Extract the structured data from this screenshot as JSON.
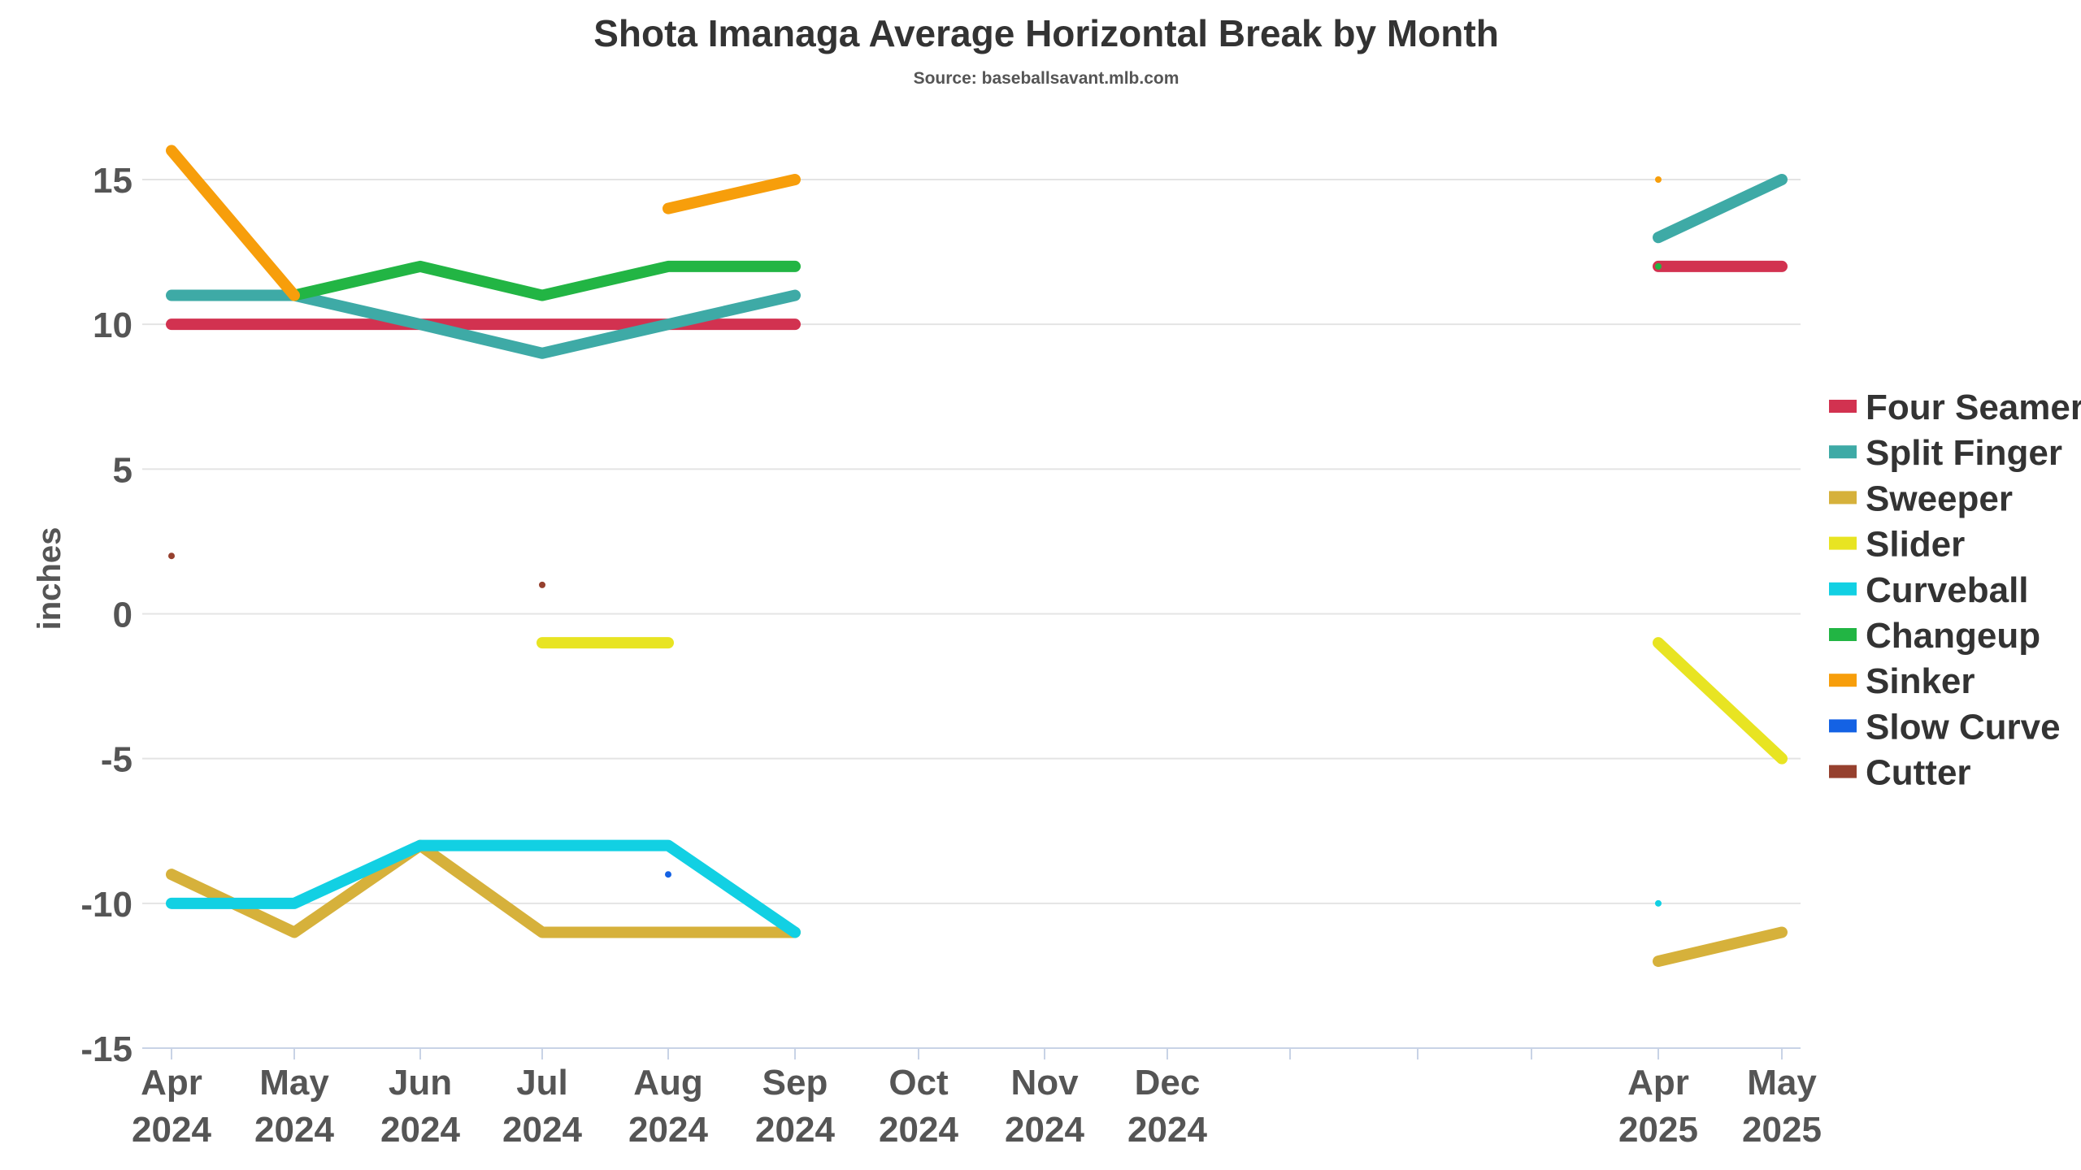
{
  "chart_data": {
    "type": "line",
    "title": "Shota Imanaga Average Horizontal Break by Month",
    "subtitle": "Source: baseballsavant.mlb.com",
    "ylabel": "inches",
    "xlabel": "",
    "ylim": [
      -15,
      15
    ],
    "yticks": [
      15,
      10,
      5,
      0,
      -5,
      -10,
      -15
    ],
    "x_categories": [
      {
        "month": "Apr",
        "year": "2024"
      },
      {
        "month": "May",
        "year": "2024"
      },
      {
        "month": "Jun",
        "year": "2024"
      },
      {
        "month": "Jul",
        "year": "2024"
      },
      {
        "month": "Aug",
        "year": "2024"
      },
      {
        "month": "Sep",
        "year": "2024"
      },
      {
        "month": "Oct",
        "year": "2024"
      },
      {
        "month": "Nov",
        "year": "2024"
      },
      {
        "month": "Dec",
        "year": "2024"
      },
      {
        "month": "",
        "year": ""
      },
      {
        "month": "",
        "year": ""
      },
      {
        "month": "",
        "year": ""
      },
      {
        "month": "Apr",
        "year": "2025"
      },
      {
        "month": "May",
        "year": "2025"
      }
    ],
    "grid": true,
    "legend_position": "right",
    "series": [
      {
        "name": "Four Seamer",
        "color": "#d23250",
        "values": [
          10,
          10,
          10,
          10,
          10,
          10,
          null,
          null,
          null,
          null,
          null,
          null,
          12,
          12
        ]
      },
      {
        "name": "Split Finger",
        "color": "#3eaaa6",
        "values": [
          11,
          11,
          10,
          9,
          10,
          11,
          null,
          null,
          null,
          null,
          null,
          null,
          13,
          15
        ]
      },
      {
        "name": "Sweeper",
        "color": "#d6b13b",
        "values": [
          -9,
          -11,
          -8,
          -11,
          -11,
          -11,
          null,
          null,
          null,
          null,
          null,
          null,
          -12,
          -11
        ]
      },
      {
        "name": "Slider",
        "color": "#e8e422",
        "values": [
          null,
          null,
          null,
          -1,
          -1,
          null,
          null,
          null,
          null,
          null,
          null,
          null,
          -1,
          -5
        ]
      },
      {
        "name": "Curveball",
        "color": "#12d0e3",
        "values": [
          -10,
          -10,
          -8,
          -8,
          -8,
          -11,
          null,
          null,
          null,
          null,
          null,
          null,
          -10,
          null
        ]
      },
      {
        "name": "Changeup",
        "color": "#22b544",
        "values": [
          null,
          11,
          12,
          11,
          12,
          12,
          null,
          null,
          null,
          null,
          null,
          null,
          12,
          null
        ]
      },
      {
        "name": "Sinker",
        "color": "#f79e0b",
        "values": [
          16,
          11,
          null,
          null,
          14,
          15,
          null,
          null,
          null,
          null,
          null,
          null,
          15,
          null
        ]
      },
      {
        "name": "Slow Curve",
        "color": "#1462e4",
        "values": [
          null,
          null,
          null,
          null,
          -9,
          null,
          null,
          null,
          null,
          null,
          null,
          null,
          null,
          null
        ]
      },
      {
        "name": "Cutter",
        "color": "#96402e",
        "values": [
          2,
          null,
          null,
          1,
          null,
          null,
          null,
          null,
          null,
          null,
          null,
          null,
          null,
          null
        ]
      }
    ]
  }
}
